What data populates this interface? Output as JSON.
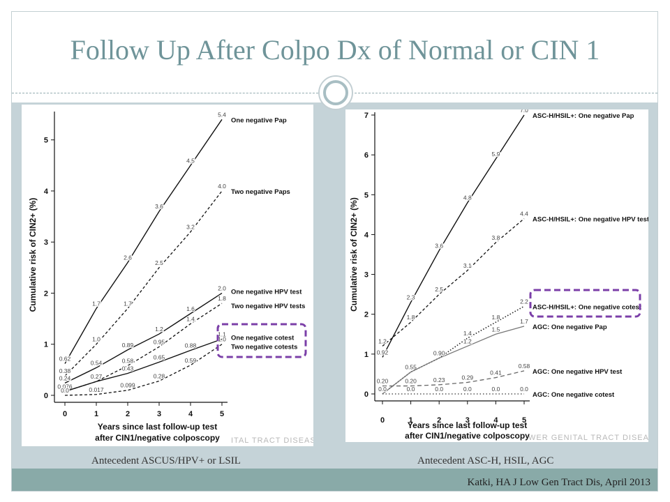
{
  "slide": {
    "title": "Follow Up After Colpo Dx of Normal or CIN 1",
    "caption_left": "Antecedent ASCUS/HPV+ or LSIL",
    "caption_right": "Antecedent ASC-H, HSIL, AGC",
    "citation": "Katki, HA J Low Gen Tract Dis, April 2013",
    "watermark_left": "ITAL TRACT DISEASE",
    "watermark_right": "WER GENITAL TRACT DISEASE"
  },
  "colors": {
    "title": "#6f9499",
    "band": "#c5d3d8",
    "footer": "#89aaa8",
    "highlight": "#7b3fa8"
  },
  "chart_data": [
    {
      "type": "line",
      "ylabel": "Cumulative risk of CIN2+ (%)",
      "xlabel_lines": [
        "Years since last follow-up test",
        "after CIN1/negative colposcopy"
      ],
      "x": [
        0,
        1,
        2,
        3,
        4,
        5
      ],
      "xlim": [
        0,
        5
      ],
      "ylim": [
        0,
        5.5
      ],
      "y_ticks": [
        0,
        1,
        2,
        3,
        4,
        5
      ],
      "series": [
        {
          "name": "One negative Pap",
          "style": "solid",
          "values": [
            0.62,
            1.7,
            2.6,
            3.6,
            4.5,
            5.4
          ],
          "labels": [
            "0.62",
            "1.7",
            "2.6",
            "3.6",
            "4.5",
            "5.4"
          ]
        },
        {
          "name": "Two negative Paps",
          "style": "dashed",
          "values": [
            0.38,
            1.0,
            1.7,
            2.5,
            3.2,
            4.0
          ],
          "labels": [
            "0.38",
            "1.0",
            "1.7",
            "2.5",
            "3.2",
            "4.0"
          ]
        },
        {
          "name": "One negative HPV test",
          "style": "solid",
          "values": [
            0.24,
            0.54,
            0.89,
            1.2,
            1.6,
            2.0
          ],
          "labels": [
            "0.24",
            "0.54",
            "0.89",
            "1.2",
            "1.6",
            "2.0"
          ]
        },
        {
          "name": "Two negative HPV tests",
          "style": "dashed",
          "values": [
            0.076,
            0.27,
            0.58,
            0.95,
            1.4,
            1.8
          ],
          "labels": [
            "0.076",
            "0.27",
            "0.58",
            "0.95",
            "1.4",
            "1.8"
          ]
        },
        {
          "name": "One negative cotest",
          "style": "solid",
          "values": [
            0.076,
            0.27,
            0.43,
            0.65,
            0.88,
            1.1
          ],
          "labels": [
            "",
            "",
            "0.43",
            "0.65",
            "0.88",
            "1.1"
          ]
        },
        {
          "name": "Two negative cotests",
          "style": "dashed",
          "values": [
            0.0,
            0.017,
            0.099,
            0.28,
            0.59,
            1.0
          ],
          "labels": [
            "0.0",
            "0.017",
            "0.099",
            "0.28",
            "0.59",
            "1.0"
          ]
        }
      ],
      "highlighted_series": [
        "One negative cotest",
        "Two negative cotests"
      ]
    },
    {
      "type": "line",
      "ylabel": "Cumulative risk of CIN2+ (%)",
      "xlabel_lines": [
        "Years since last follow-up test",
        "after CIN1/negative colposcopy"
      ],
      "x": [
        0,
        1,
        2,
        3,
        4,
        5
      ],
      "xlim": [
        0,
        5
      ],
      "ylim": [
        0,
        7
      ],
      "y_ticks": [
        0,
        1,
        2,
        3,
        4,
        5,
        6,
        7
      ],
      "series": [
        {
          "name": "ASC-H/HSIL+: One negative Pap",
          "style": "solid",
          "values": [
            0.92,
            2.3,
            3.6,
            4.8,
            5.9,
            7.0
          ],
          "labels": [
            "0.92",
            "2.3",
            "3.6",
            "4.8",
            "5.9",
            "7.0"
          ]
        },
        {
          "name": "ASC-H/HSIL+: One negative HPV test",
          "style": "dashed",
          "values": [
            1.2,
            1.8,
            2.5,
            3.1,
            3.8,
            4.4
          ],
          "labels": [
            "1.2",
            "1.8",
            "2.5",
            "3.1",
            "3.8",
            "4.4"
          ]
        },
        {
          "name": "ASC-H/HSIL+: One negative cotest",
          "style": "dotted",
          "values": [
            0.0,
            0.55,
            0.9,
            1.4,
            1.8,
            2.2
          ],
          "labels": [
            "",
            "0.55",
            "",
            "1.4",
            "1.8",
            "2.2"
          ]
        },
        {
          "name": "AGC: One negative Pap",
          "style": "solid-gray",
          "values": [
            0.0,
            0.55,
            0.9,
            1.2,
            1.5,
            1.7
          ],
          "labels": [
            "",
            "",
            "0.90",
            "1.2",
            "1.5",
            "1.7"
          ]
        },
        {
          "name": "AGC: One negative HPV test",
          "style": "dashed-gray",
          "values": [
            0.2,
            0.2,
            0.23,
            0.29,
            0.41,
            0.58
          ],
          "labels": [
            "0.20",
            "0.20",
            "0.23",
            "0.29",
            "0.41",
            "0.58"
          ]
        },
        {
          "name": "AGC: One negative cotest",
          "style": "dotted-gray",
          "values": [
            0.0,
            0.0,
            0.0,
            0.0,
            0.0,
            0.0
          ],
          "labels": [
            "0.0",
            "0.0",
            "0.0",
            "0.0",
            "0.0",
            "0.0"
          ]
        }
      ],
      "highlighted_series": [
        "ASC-H/HSIL+: One negative cotest"
      ]
    }
  ]
}
